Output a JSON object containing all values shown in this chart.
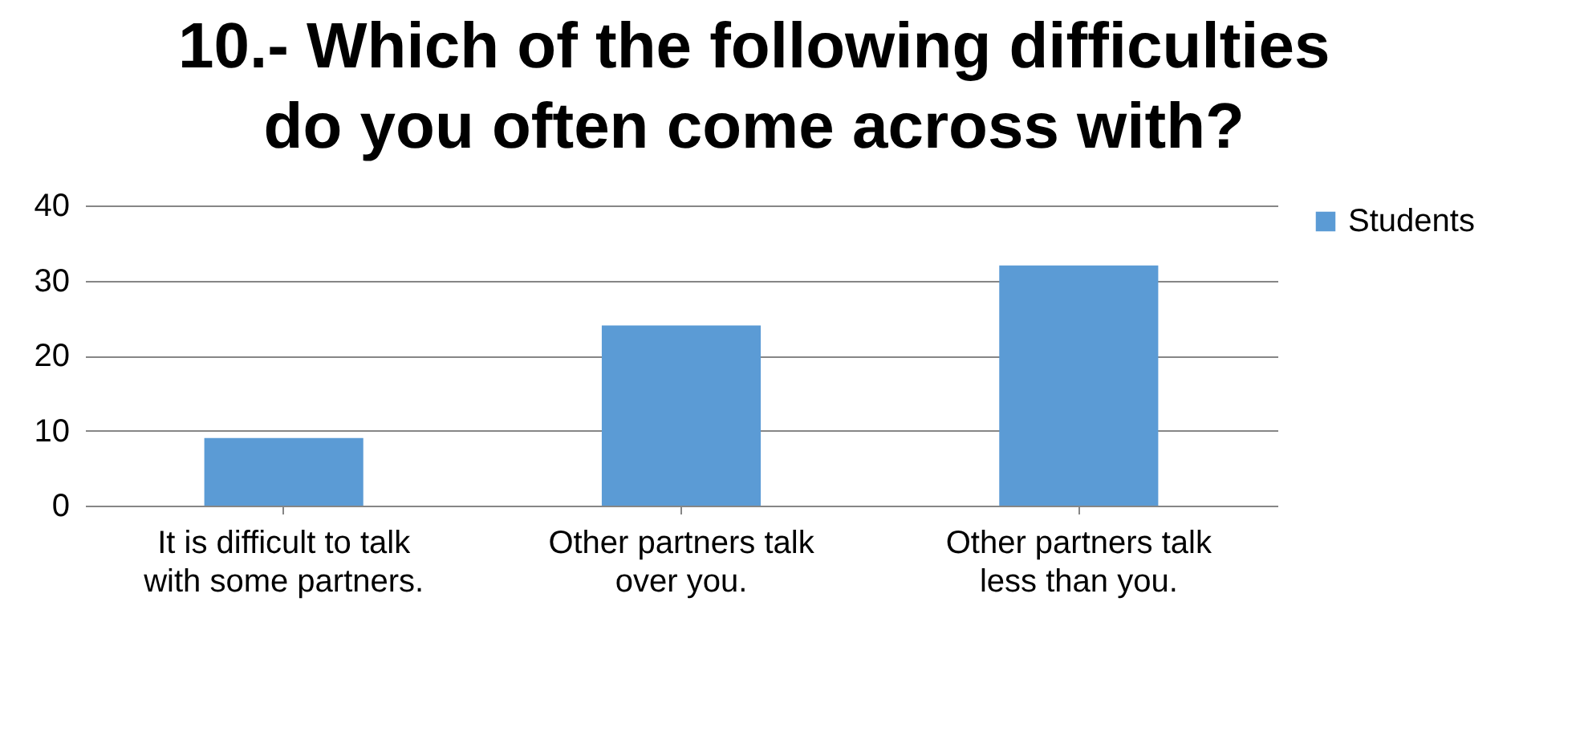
{
  "chart_data": {
    "type": "bar",
    "title": "10.- Which of the following difficulties do you often come across with?",
    "categories": [
      "It is difficult to talk with some partners.",
      "Other partners talk over you.",
      "Other partners talk less than you."
    ],
    "series": [
      {
        "name": "Students",
        "color": "#5b9bd5",
        "values": [
          9,
          24,
          32
        ]
      }
    ],
    "ylim": [
      0,
      40
    ],
    "yticks": [
      0,
      10,
      20,
      30,
      40
    ],
    "grid": "y",
    "legend": "right"
  }
}
